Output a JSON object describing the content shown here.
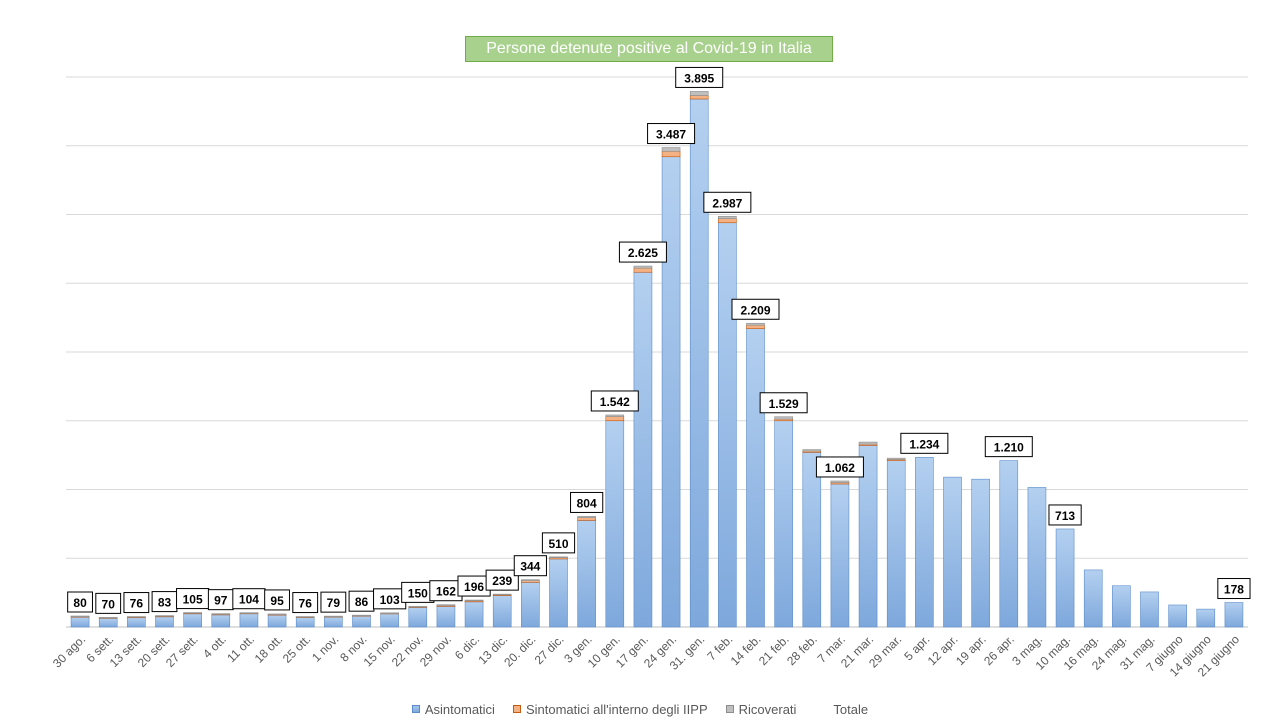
{
  "chart_data": {
    "type": "bar",
    "title": "Persone detenute positive al Covid-19 in Italia",
    "xlabel": "",
    "ylabel": "",
    "ylim": [
      0,
      4000
    ],
    "grid": true,
    "legend_placement": "bottom",
    "categories": [
      "30 ago.",
      "6 sett.",
      "13 sett.",
      "20 sett.",
      "27 sett.",
      "4 ott.",
      "11 ott.",
      "18 ott.",
      "25 ott.",
      "1 nov.",
      "8 nov.",
      "15 nov.",
      "22 nov.",
      "29 nov.",
      "6 dic.",
      "13 dic.",
      "20. dic.",
      "27 dic.",
      "3 gen.",
      "10 gen.",
      "17 gen.",
      "24 gen.",
      "31. gen.",
      "7 feb.",
      "14 feb.",
      "21 feb.",
      "28 feb.",
      "7 mar.",
      "21 mar.",
      "29 mar.",
      "5 apr.",
      "12 apr.",
      "19 apr.",
      "26 apr.",
      "3 mag.",
      "10 mag.",
      "16 mag.",
      "24 mag.",
      "31 mag.",
      "7 giugno",
      "14 giugno",
      "21 giugno"
    ],
    "series": [
      {
        "name": "Asintomatici",
        "color": "#8db4e2",
        "values": [
          72,
          64,
          68,
          74,
          96,
          88,
          96,
          87,
          70,
          73,
          80,
          96,
          142,
          150,
          183,
          228,
          325,
          495,
          775,
          1500,
          2580,
          3420,
          3840,
          2940,
          2170,
          1500,
          1270,
          1040,
          1320,
          1210,
          1234,
          1090,
          1075,
          1210,
          1015,
          713,
          415,
          300,
          255,
          160,
          130,
          178
        ]
      },
      {
        "name": "Sintomatici all'interno degli IIPP",
        "color": "#f4b183",
        "values": [
          5,
          4,
          5,
          6,
          7,
          6,
          6,
          5,
          4,
          4,
          4,
          5,
          5,
          8,
          8,
          6,
          12,
          10,
          20,
          30,
          30,
          40,
          25,
          30,
          25,
          12,
          10,
          10,
          10,
          8,
          0,
          0,
          0,
          0,
          0,
          0,
          0,
          0,
          0,
          0,
          0,
          0
        ]
      },
      {
        "name": "Ricoverati",
        "color": "#bfbfbf",
        "values": [
          3,
          2,
          3,
          3,
          2,
          3,
          2,
          3,
          2,
          2,
          2,
          2,
          3,
          4,
          5,
          5,
          7,
          5,
          9,
          12,
          15,
          27,
          30,
          17,
          14,
          17,
          10,
          12,
          15,
          10,
          0,
          0,
          0,
          0,
          0,
          0,
          0,
          0,
          0,
          0,
          0,
          0
        ]
      }
    ],
    "totals_series_name": "Totale",
    "total_labels": [
      "80",
      "70",
      "76",
      "83",
      "105",
      "97",
      "104",
      "95",
      "76",
      "79",
      "86",
      "103",
      "150",
      "162",
      "196",
      "239",
      "344",
      "510",
      "804",
      "1.542",
      "2.625",
      "3.487",
      "3.895",
      "2.987",
      "2.209",
      "1.529",
      "",
      "1.062",
      "",
      "",
      "1.234",
      "",
      "",
      "1.210",
      "",
      "713",
      "",
      "",
      "",
      "",
      "",
      "178"
    ]
  }
}
